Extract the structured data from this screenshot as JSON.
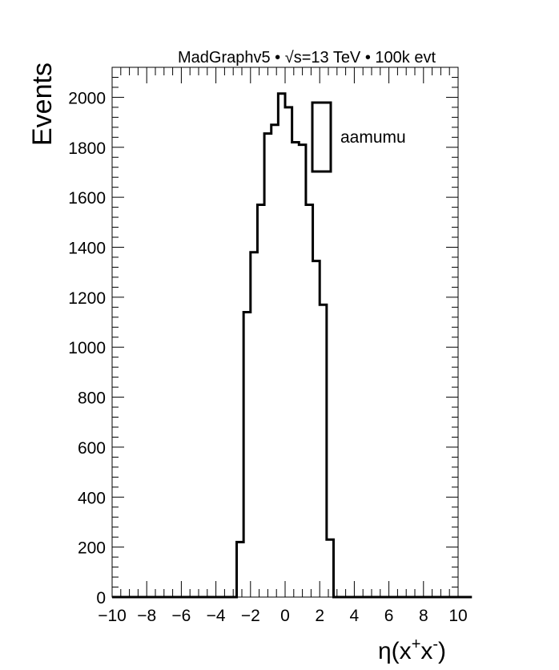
{
  "chart_data": {
    "type": "histogram",
    "title": "MadGraphv5 • √s=13 TeV • 100k evt",
    "ylabel": "Events",
    "xlabel_base": "η(x",
    "xlabel_sup1": "+",
    "xlabel_mid": "x",
    "xlabel_sup2": "-",
    "xlabel_end": ")",
    "xlim": [
      -10,
      10
    ],
    "ylim": [
      0,
      2120
    ],
    "xticks": [
      -10,
      -8,
      -6,
      -4,
      -2,
      0,
      2,
      4,
      6,
      8,
      10
    ],
    "yticks": [
      0,
      200,
      400,
      600,
      800,
      1000,
      1200,
      1400,
      1600,
      1800,
      2000
    ],
    "bin_width": 0.4,
    "bin_start": -10,
    "values": [
      0,
      0,
      0,
      0,
      0,
      0,
      0,
      0,
      0,
      0,
      0,
      0,
      0,
      0,
      0,
      0,
      0,
      0,
      220,
      1140,
      1380,
      1570,
      1855,
      1890,
      2015,
      1960,
      1820,
      1810,
      1570,
      1345,
      1170,
      230,
      0,
      0,
      0,
      0,
      0,
      0,
      0,
      0,
      0,
      0,
      0,
      0,
      0,
      0,
      0,
      0,
      0,
      0,
      0,
      0
    ],
    "legend": {
      "label": "aamumu",
      "position": "top-right"
    },
    "color": "#000000"
  }
}
